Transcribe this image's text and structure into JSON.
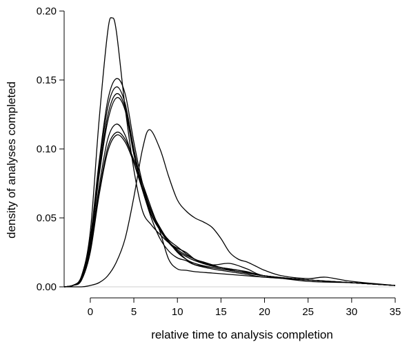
{
  "chart_data": {
    "type": "line",
    "title": "",
    "xlabel": "relative time to analysis completion",
    "ylabel": "density of analyses completed",
    "xlim": [
      -3,
      35
    ],
    "ylim": [
      0,
      0.2
    ],
    "x_ticks": [
      0,
      5,
      10,
      15,
      20,
      25,
      30,
      35
    ],
    "x_tick_labels": [
      "0",
      "5",
      "10",
      "15",
      "20",
      "25",
      "30",
      "35"
    ],
    "y_ticks": [
      0,
      0.05,
      0.1,
      0.15,
      0.2
    ],
    "y_tick_labels": [
      "0.00",
      "0.05",
      "0.10",
      "0.15",
      "0.20"
    ],
    "baseline_y": 0,
    "grid": false,
    "legend": "none",
    "colors": {
      "line": "#000000",
      "baseline": "#cfcfcf",
      "axis": "#000000"
    },
    "series": [
      {
        "x": [
          -3,
          -2,
          -1,
          0,
          1,
          2,
          2.5,
          3,
          4,
          5,
          6,
          7,
          8,
          9,
          10,
          11,
          12,
          13,
          14,
          15,
          17,
          20,
          25,
          30,
          35
        ],
        "y": [
          0,
          0.001,
          0.008,
          0.04,
          0.12,
          0.185,
          0.195,
          0.185,
          0.13,
          0.085,
          0.055,
          0.045,
          0.038,
          0.032,
          0.028,
          0.025,
          0.02,
          0.018,
          0.016,
          0.014,
          0.012,
          0.008,
          0.004,
          0.003,
          0.001
        ]
      },
      {
        "x": [
          -3,
          -2,
          -1,
          0,
          1,
          2,
          3,
          4,
          5,
          6,
          7,
          8,
          9,
          10,
          11,
          12,
          13,
          15,
          17,
          20,
          25,
          30,
          35
        ],
        "y": [
          0,
          0.001,
          0.007,
          0.035,
          0.09,
          0.135,
          0.151,
          0.14,
          0.105,
          0.075,
          0.055,
          0.043,
          0.033,
          0.027,
          0.023,
          0.02,
          0.017,
          0.014,
          0.011,
          0.008,
          0.005,
          0.003,
          0.001
        ]
      },
      {
        "x": [
          -3,
          -2,
          -1,
          0,
          1,
          2,
          3,
          4,
          5,
          6,
          7,
          8,
          9,
          10,
          11,
          12,
          14,
          16,
          18,
          20,
          25,
          30,
          35
        ],
        "y": [
          0,
          0.001,
          0.007,
          0.033,
          0.086,
          0.13,
          0.145,
          0.133,
          0.1,
          0.072,
          0.053,
          0.042,
          0.034,
          0.029,
          0.024,
          0.02,
          0.016,
          0.017,
          0.013,
          0.008,
          0.005,
          0.003,
          0.001
        ]
      },
      {
        "x": [
          -3,
          -2,
          -1,
          0,
          1,
          2,
          3,
          4,
          5,
          6,
          7,
          8,
          9,
          10,
          11,
          12,
          14,
          16,
          18,
          20,
          25,
          30,
          35
        ],
        "y": [
          0,
          0.001,
          0.006,
          0.031,
          0.082,
          0.124,
          0.14,
          0.13,
          0.097,
          0.07,
          0.052,
          0.041,
          0.032,
          0.026,
          0.022,
          0.019,
          0.015,
          0.013,
          0.011,
          0.008,
          0.005,
          0.003,
          0.001
        ]
      },
      {
        "x": [
          -3,
          -2,
          -1,
          0,
          1,
          2,
          3,
          4,
          5,
          6,
          7,
          8,
          9,
          10,
          11,
          12,
          14,
          16,
          18,
          20,
          25,
          30,
          35
        ],
        "y": [
          0,
          0.001,
          0.006,
          0.03,
          0.08,
          0.12,
          0.137,
          0.128,
          0.096,
          0.071,
          0.055,
          0.043,
          0.033,
          0.025,
          0.02,
          0.017,
          0.014,
          0.012,
          0.01,
          0.008,
          0.005,
          0.003,
          0.001
        ]
      },
      {
        "x": [
          -3,
          -2,
          -1,
          0,
          1,
          2,
          3,
          4,
          5,
          6,
          7,
          8,
          9,
          10,
          11,
          12,
          14,
          16,
          18,
          20,
          25,
          30,
          35
        ],
        "y": [
          0,
          0.001,
          0.005,
          0.028,
          0.072,
          0.107,
          0.118,
          0.11,
          0.09,
          0.07,
          0.05,
          0.035,
          0.026,
          0.021,
          0.019,
          0.016,
          0.014,
          0.012,
          0.01,
          0.008,
          0.005,
          0.003,
          0.001
        ]
      },
      {
        "x": [
          -3,
          -2,
          -1,
          0,
          1,
          2,
          3,
          4,
          5,
          6,
          7,
          8,
          9,
          10,
          11,
          12,
          14,
          16,
          18,
          20,
          25,
          30,
          35
        ],
        "y": [
          0,
          0.001,
          0.005,
          0.026,
          0.068,
          0.101,
          0.112,
          0.107,
          0.092,
          0.075,
          0.057,
          0.04,
          0.02,
          0.013,
          0.012,
          0.011,
          0.01,
          0.009,
          0.008,
          0.007,
          0.005,
          0.003,
          0.001
        ]
      },
      {
        "x": [
          -3,
          -2,
          -1,
          0,
          1,
          2,
          3,
          4,
          5,
          6,
          7,
          8,
          9,
          10,
          11,
          12,
          14,
          16,
          18,
          20,
          25,
          30,
          35
        ],
        "y": [
          0,
          0.001,
          0.005,
          0.025,
          0.066,
          0.098,
          0.11,
          0.105,
          0.09,
          0.072,
          0.055,
          0.042,
          0.033,
          0.026,
          0.02,
          0.016,
          0.013,
          0.011,
          0.009,
          0.007,
          0.005,
          0.003,
          0.001
        ]
      },
      {
        "x": [
          -3,
          -1,
          0,
          1,
          2,
          3,
          4,
          5,
          6,
          6.8,
          8,
          9,
          10,
          11,
          12,
          13,
          14,
          15,
          16,
          17,
          18,
          19,
          20,
          22,
          25,
          27,
          30,
          35
        ],
        "y": [
          0,
          0,
          0.001,
          0.003,
          0.008,
          0.018,
          0.035,
          0.065,
          0.1,
          0.114,
          0.1,
          0.08,
          0.063,
          0.055,
          0.05,
          0.047,
          0.043,
          0.035,
          0.025,
          0.02,
          0.018,
          0.015,
          0.012,
          0.008,
          0.006,
          0.007,
          0.004,
          0.001
        ]
      }
    ]
  }
}
